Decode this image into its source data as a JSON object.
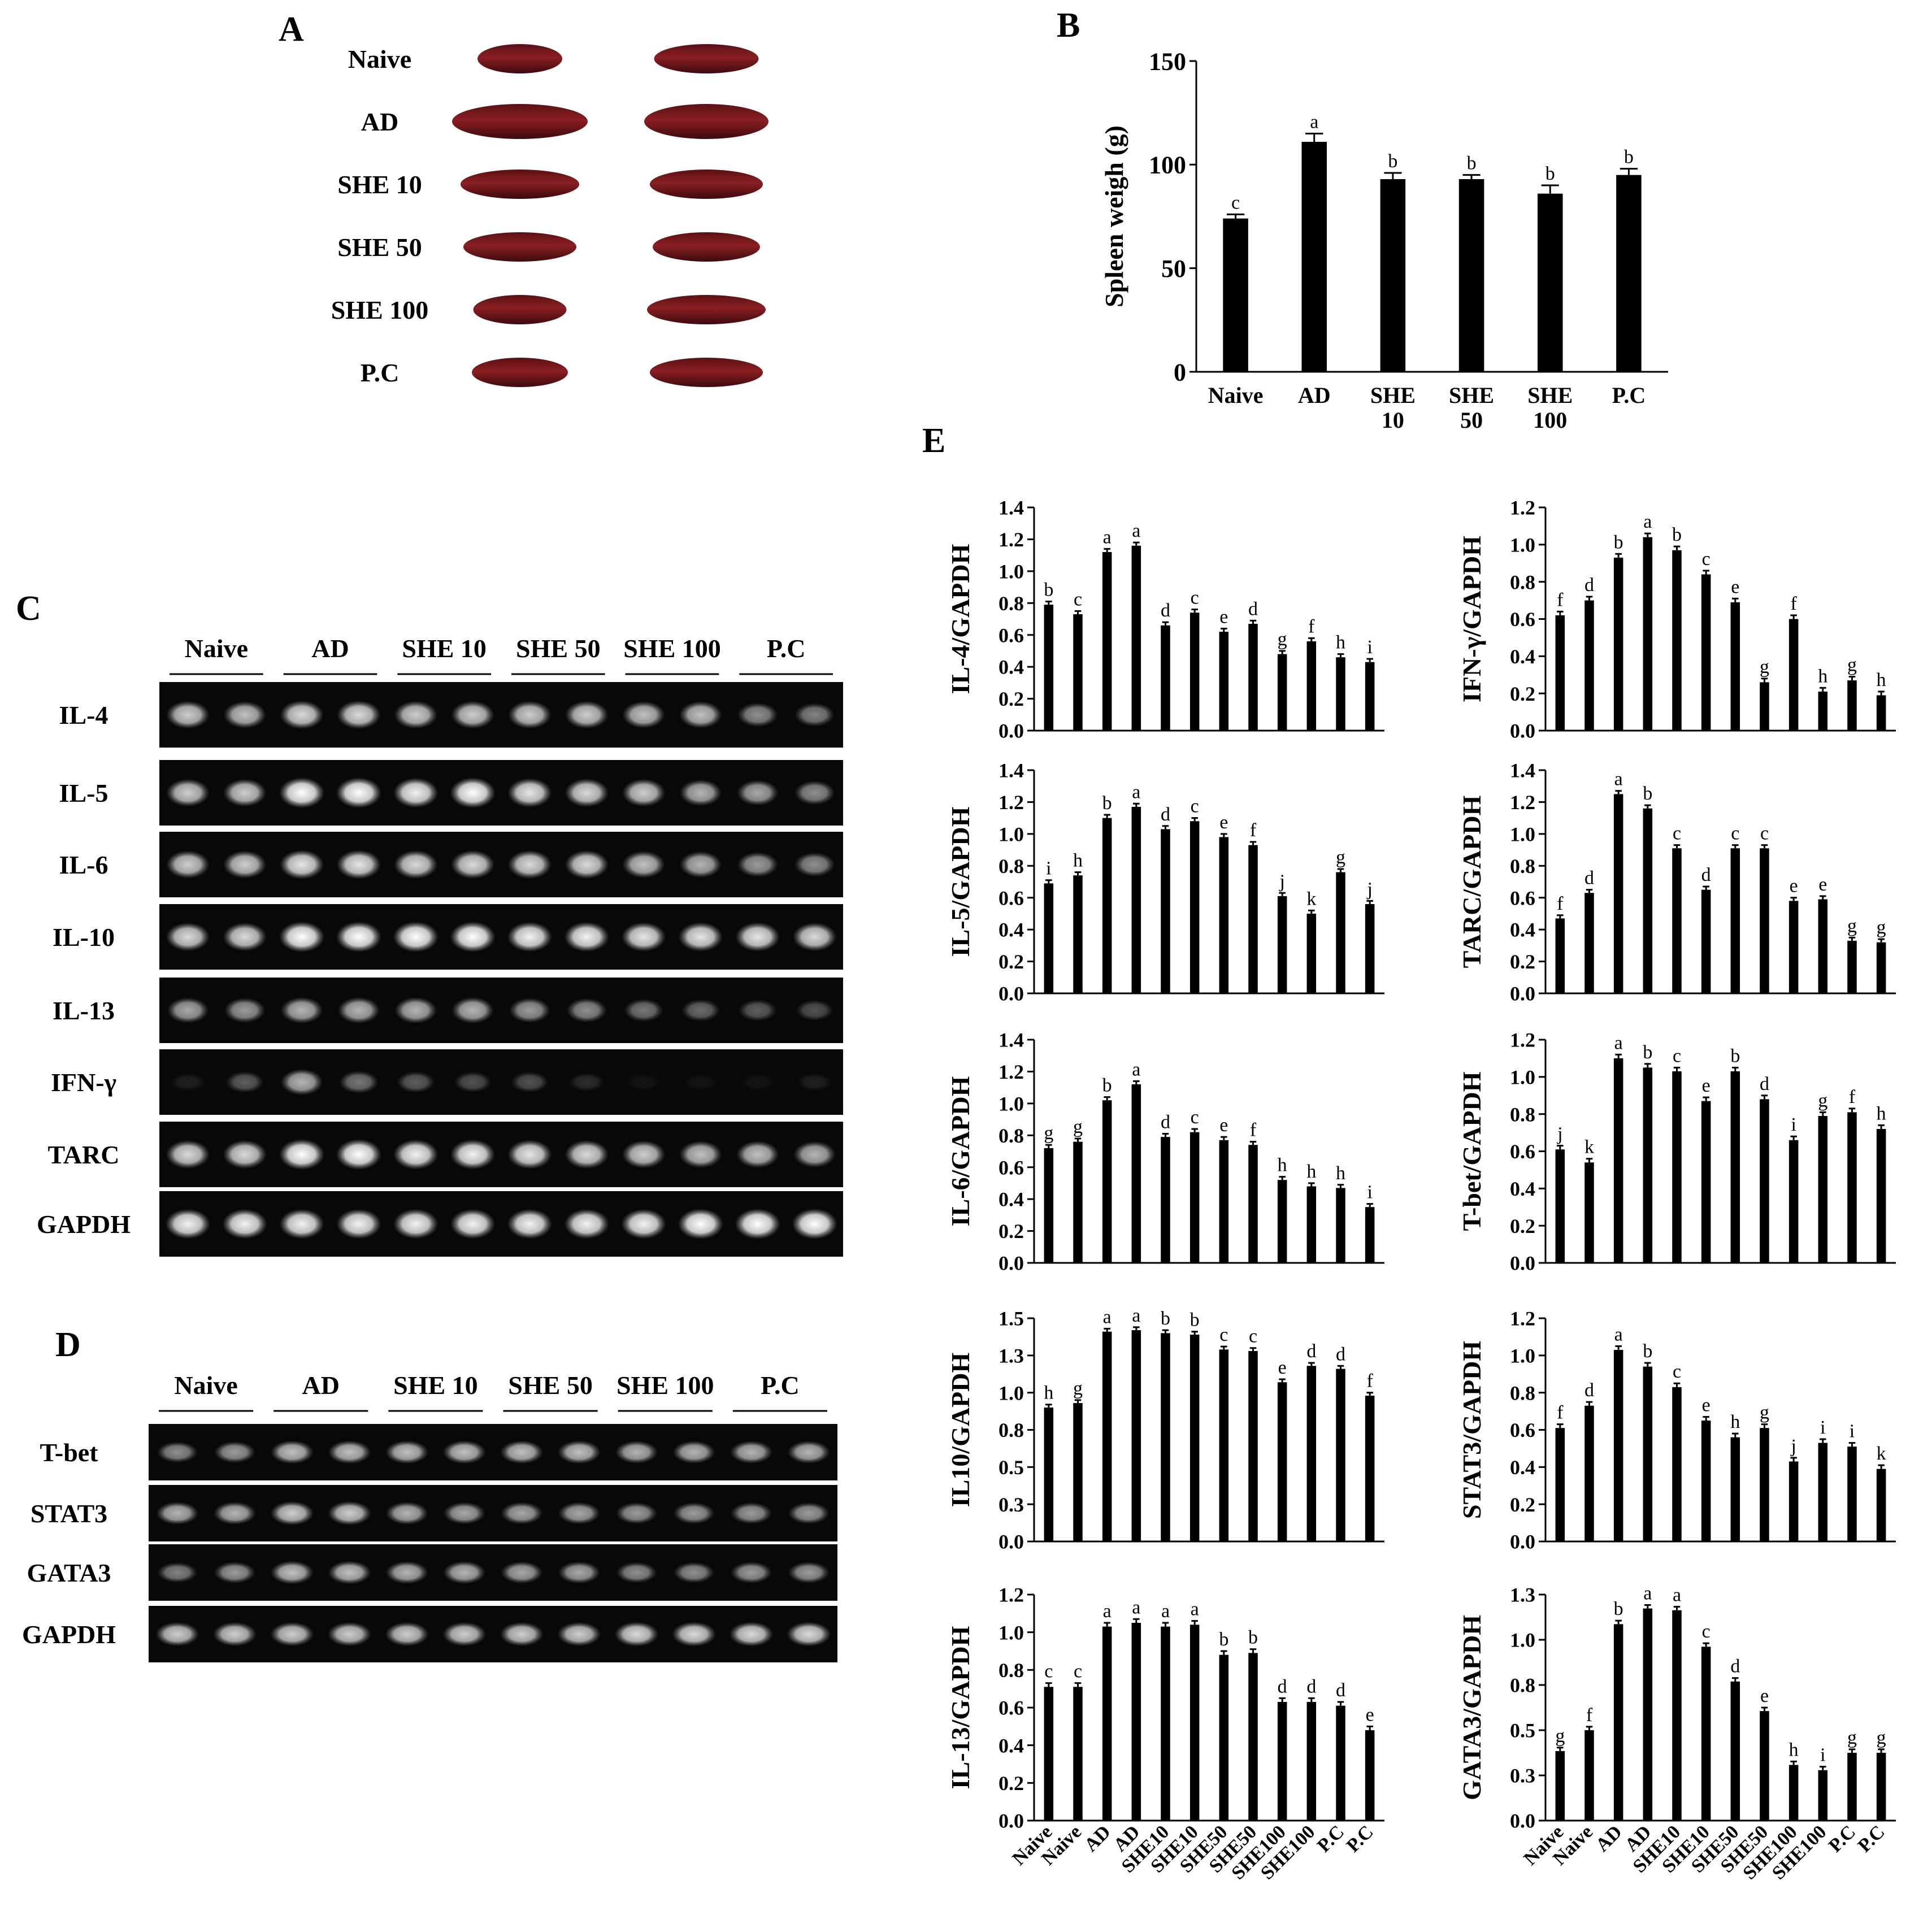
{
  "panels": {
    "A": {
      "label": "A",
      "rows": [
        "Naive",
        "AD",
        "SHE 10",
        "SHE 50",
        "SHE 100",
        "P.C"
      ]
    },
    "B": {
      "label": "B"
    },
    "C": {
      "label": "C",
      "groups": [
        "Naive",
        "AD",
        "SHE 10",
        "SHE 50",
        "SHE 100",
        "P.C"
      ],
      "genes": [
        "IL-4",
        "IL-5",
        "IL-6",
        "IL-10",
        "IL-13",
        "IFN-γ",
        "TARC",
        "GAPDH"
      ],
      "intensity": [
        [
          0.8,
          0.75,
          0.85,
          0.85,
          0.8,
          0.8,
          0.8,
          0.8,
          0.75,
          0.75,
          0.55,
          0.5
        ],
        [
          0.8,
          0.8,
          1,
          1,
          0.95,
          1,
          0.9,
          0.85,
          0.8,
          0.7,
          0.65,
          0.55
        ],
        [
          0.8,
          0.8,
          0.9,
          0.9,
          0.85,
          0.85,
          0.85,
          0.85,
          0.75,
          0.7,
          0.6,
          0.55
        ],
        [
          0.85,
          0.85,
          1,
          1,
          1,
          1,
          0.95,
          0.95,
          0.9,
          0.9,
          0.9,
          0.85
        ],
        [
          0.65,
          0.6,
          0.7,
          0.7,
          0.7,
          0.7,
          0.6,
          0.55,
          0.45,
          0.4,
          0.35,
          0.3
        ],
        [
          0.1,
          0.35,
          0.7,
          0.45,
          0.35,
          0.3,
          0.3,
          0.15,
          0.05,
          0.05,
          0.05,
          0.1
        ],
        [
          0.85,
          0.85,
          1,
          1,
          0.95,
          0.95,
          0.9,
          0.85,
          0.8,
          0.75,
          0.75,
          0.7
        ],
        [
          0.95,
          0.95,
          0.95,
          0.95,
          0.95,
          0.95,
          0.95,
          0.95,
          0.95,
          1,
          1,
          1
        ]
      ]
    },
    "D": {
      "label": "D",
      "groups": [
        "Naive",
        "AD",
        "SHE 10",
        "SHE 50",
        "SHE 100",
        "P.C"
      ],
      "genes": [
        "T-bet",
        "STAT3",
        "GATA3",
        "GAPDH"
      ],
      "intensity": [
        [
          0.55,
          0.6,
          0.75,
          0.75,
          0.75,
          0.75,
          0.75,
          0.75,
          0.7,
          0.7,
          0.7,
          0.7
        ],
        [
          0.7,
          0.7,
          0.8,
          0.8,
          0.7,
          0.65,
          0.65,
          0.65,
          0.6,
          0.6,
          0.6,
          0.6
        ],
        [
          0.5,
          0.6,
          0.75,
          0.75,
          0.7,
          0.7,
          0.65,
          0.65,
          0.55,
          0.55,
          0.6,
          0.6
        ],
        [
          0.8,
          0.8,
          0.8,
          0.8,
          0.8,
          0.8,
          0.8,
          0.8,
          0.85,
          0.85,
          0.85,
          0.85
        ]
      ]
    },
    "E": {
      "label": "E"
    }
  },
  "chart_data": [
    {
      "id": "B",
      "type": "bar",
      "ylabel": "Spleen weigh (g)",
      "categories": [
        "Naive",
        "AD",
        "SHE 10",
        "SHE 50",
        "SHE 100",
        "P.C"
      ],
      "values": [
        74,
        111,
        93,
        93,
        86,
        95
      ],
      "errors": [
        2,
        4,
        3,
        2,
        4,
        3
      ],
      "significance": [
        "c",
        "a",
        "b",
        "b",
        "b",
        "b"
      ],
      "ylim": [
        0,
        150
      ],
      "yticks": [
        "0",
        "50",
        "100",
        "150"
      ]
    },
    {
      "id": "E-IL-4",
      "type": "bar",
      "ylabel": "IL-4/GAPDH",
      "categories": [
        "Naive",
        "Naive",
        "AD",
        "AD",
        "SHE10",
        "SHE10",
        "SHE50",
        "SHE50",
        "SHE100",
        "SHE100",
        "P.C",
        "P.C"
      ],
      "values": [
        0.79,
        0.73,
        1.12,
        1.16,
        0.66,
        0.74,
        0.62,
        0.67,
        0.48,
        0.56,
        0.46,
        0.43
      ],
      "significance": [
        "b",
        "c",
        "a",
        "a",
        "d",
        "c",
        "e",
        "d",
        "g",
        "f",
        "h",
        "i"
      ],
      "ylim": [
        0,
        1.4
      ],
      "yticks": [
        "0.0",
        "0.2",
        "0.4",
        "0.6",
        "0.8",
        "1.0",
        "1.2",
        "1.4"
      ]
    },
    {
      "id": "E-IFN",
      "type": "bar",
      "ylabel": "IFN-γ/GAPDH",
      "categories": [
        "Naive",
        "Naive",
        "AD",
        "AD",
        "SHE10",
        "SHE10",
        "SHE50",
        "SHE50",
        "SHE100",
        "SHE100",
        "P.C",
        "P.C"
      ],
      "values": [
        0.62,
        0.7,
        0.93,
        1.04,
        0.97,
        0.84,
        0.69,
        0.26,
        0.6,
        0.21,
        0.27,
        0.19
      ],
      "significance": [
        "f",
        "d",
        "b",
        "a",
        "b",
        "c",
        "e",
        "g",
        "f",
        "h",
        "g",
        "h"
      ],
      "ylim": [
        0,
        1.2
      ],
      "yticks": [
        "0.0",
        "0.2",
        "0.4",
        "0.6",
        "0.8",
        "1.0",
        "1.2"
      ]
    },
    {
      "id": "E-IL-5",
      "type": "bar",
      "ylabel": "IL-5/GAPDH",
      "categories": [
        "Naive",
        "Naive",
        "AD",
        "AD",
        "SHE10",
        "SHE10",
        "SHE50",
        "SHE50",
        "SHE100",
        "SHE100",
        "P.C",
        "P.C"
      ],
      "values": [
        0.69,
        0.74,
        1.1,
        1.17,
        1.03,
        1.08,
        0.98,
        0.93,
        0.61,
        0.5,
        0.76,
        0.56
      ],
      "significance": [
        "i",
        "h",
        "b",
        "a",
        "d",
        "c",
        "e",
        "f",
        "j",
        "k",
        "g",
        "j"
      ],
      "ylim": [
        0,
        1.4
      ],
      "yticks": [
        "0.0",
        "0.2",
        "0.4",
        "0.6",
        "0.8",
        "1.0",
        "1.2",
        "1.4"
      ]
    },
    {
      "id": "E-TARC",
      "type": "bar",
      "ylabel": "TARC/GAPDH",
      "categories": [
        "Naive",
        "Naive",
        "AD",
        "AD",
        "SHE10",
        "SHE10",
        "SHE50",
        "SHE50",
        "SHE100",
        "SHE100",
        "P.C",
        "P.C"
      ],
      "values": [
        0.47,
        0.63,
        1.25,
        1.16,
        0.91,
        0.65,
        0.91,
        0.91,
        0.58,
        0.59,
        0.33,
        0.32
      ],
      "significance": [
        "f",
        "d",
        "a",
        "b",
        "c",
        "d",
        "c",
        "c",
        "e",
        "e",
        "g",
        "g"
      ],
      "ylim": [
        0,
        1.4
      ],
      "yticks": [
        "0.0",
        "0.2",
        "0.4",
        "0.6",
        "0.8",
        "1.0",
        "1.2",
        "1.4"
      ]
    },
    {
      "id": "E-IL-6",
      "type": "bar",
      "ylabel": "IL-6/GAPDH",
      "categories": [
        "Naive",
        "Naive",
        "AD",
        "AD",
        "SHE10",
        "SHE10",
        "SHE50",
        "SHE50",
        "SHE100",
        "SHE100",
        "P.C",
        "P.C"
      ],
      "values": [
        0.72,
        0.76,
        1.02,
        1.12,
        0.79,
        0.82,
        0.77,
        0.74,
        0.52,
        0.48,
        0.47,
        0.35
      ],
      "significance": [
        "g",
        "g",
        "b",
        "a",
        "d",
        "c",
        "e",
        "f",
        "h",
        "h",
        "h",
        "i"
      ],
      "ylim": [
        0,
        1.4
      ],
      "yticks": [
        "0.0",
        "0.2",
        "0.4",
        "0.6",
        "0.8",
        "1.0",
        "1.2",
        "1.4"
      ]
    },
    {
      "id": "E-T-bet",
      "type": "bar",
      "ylabel": "T-bet/GAPDH",
      "categories": [
        "Naive",
        "Naive",
        "AD",
        "AD",
        "SHE10",
        "SHE10",
        "SHE50",
        "SHE50",
        "SHE100",
        "SHE100",
        "P.C",
        "P.C"
      ],
      "values": [
        0.61,
        0.54,
        1.1,
        1.05,
        1.03,
        0.87,
        1.03,
        0.88,
        0.66,
        0.79,
        0.81,
        0.72
      ],
      "significance": [
        "j",
        "k",
        "a",
        "b",
        "c",
        "e",
        "b",
        "d",
        "i",
        "g",
        "f",
        "h"
      ],
      "ylim": [
        0,
        1.2
      ],
      "yticks": [
        "0.0",
        "0.2",
        "0.4",
        "0.6",
        "0.8",
        "1.0",
        "1.2"
      ]
    },
    {
      "id": "E-IL10",
      "type": "bar",
      "ylabel": "IL10/GAPDH",
      "categories": [
        "Naive",
        "Naive",
        "AD",
        "AD",
        "SHE10",
        "SHE10",
        "SHE50",
        "SHE50",
        "SHE100",
        "SHE100",
        "P.C",
        "P.C"
      ],
      "values": [
        0.9,
        0.93,
        1.41,
        1.42,
        1.4,
        1.39,
        1.29,
        1.28,
        1.07,
        1.18,
        1.16,
        0.98
      ],
      "significance": [
        "h",
        "g",
        "a",
        "a",
        "b",
        "b",
        "c",
        "c",
        "e",
        "d",
        "d",
        "f"
      ],
      "ylim": [
        0,
        1.5
      ],
      "yticks": [
        "0.0",
        "0.3",
        "0.5",
        "0.8",
        "1.0",
        "1.3",
        "1.5"
      ]
    },
    {
      "id": "E-STAT3",
      "type": "bar",
      "ylabel": "STAT3/GAPDH",
      "categories": [
        "Naive",
        "Naive",
        "AD",
        "AD",
        "SHE10",
        "SHE10",
        "SHE50",
        "SHE50",
        "SHE100",
        "SHE100",
        "P.C",
        "P.C"
      ],
      "values": [
        0.61,
        0.73,
        1.03,
        0.94,
        0.83,
        0.65,
        0.56,
        0.61,
        0.43,
        0.53,
        0.51,
        0.39
      ],
      "significance": [
        "f",
        "d",
        "a",
        "b",
        "c",
        "e",
        "h",
        "g",
        "j",
        "i",
        "i",
        "k"
      ],
      "ylim": [
        0,
        1.2
      ],
      "yticks": [
        "0.0",
        "0.2",
        "0.4",
        "0.6",
        "0.8",
        "1.0",
        "1.2"
      ]
    },
    {
      "id": "E-IL-13",
      "type": "bar",
      "ylabel": "IL-13/GAPDH",
      "categories": [
        "Naive",
        "Naive",
        "AD",
        "AD",
        "SHE10",
        "SHE10",
        "SHE50",
        "SHE50",
        "SHE100",
        "SHE100",
        "P.C",
        "P.C"
      ],
      "values": [
        0.71,
        0.71,
        1.03,
        1.05,
        1.03,
        1.04,
        0.88,
        0.89,
        0.63,
        0.63,
        0.61,
        0.48
      ],
      "significance": [
        "c",
        "c",
        "a",
        "a",
        "a",
        "a",
        "b",
        "b",
        "d",
        "d",
        "d",
        "e"
      ],
      "ylim": [
        0,
        1.2
      ],
      "yticks": [
        "0.0",
        "0.2",
        "0.4",
        "0.6",
        "0.8",
        "1.0",
        "1.2"
      ]
    },
    {
      "id": "E-GATA3",
      "type": "bar",
      "ylabel": "GATA3/GAPDH",
      "categories": [
        "Naive",
        "Naive",
        "AD",
        "AD",
        "SHE10",
        "SHE10",
        "SHE50",
        "SHE50",
        "SHE100",
        "SHE100",
        "P.C",
        "P.C"
      ],
      "values": [
        0.4,
        0.52,
        1.13,
        1.22,
        1.21,
        1.0,
        0.8,
        0.63,
        0.32,
        0.29,
        0.39,
        0.39
      ],
      "significance": [
        "g",
        "f",
        "b",
        "a",
        "a",
        "c",
        "d",
        "e",
        "h",
        "i",
        "g",
        "g"
      ],
      "ylim": [
        0,
        1.3
      ],
      "yticks": [
        "0.0",
        "0.3",
        "0.5",
        "0.8",
        "1.0",
        "1.3"
      ]
    }
  ]
}
